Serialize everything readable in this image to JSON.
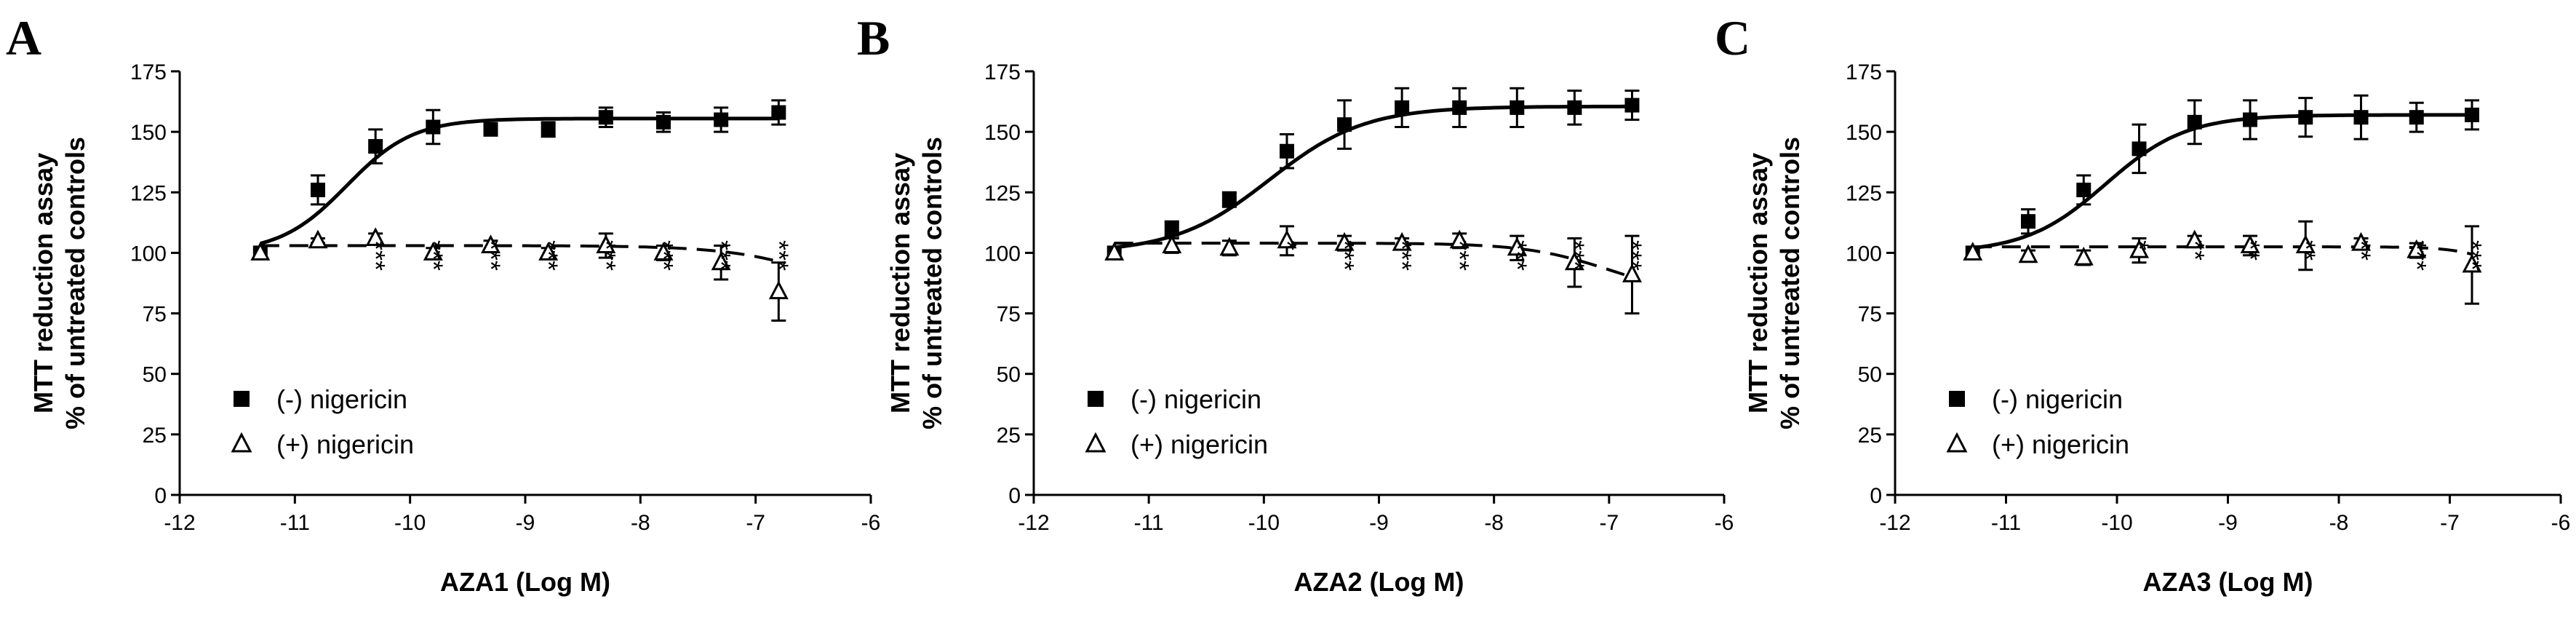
{
  "chart_data": [
    {
      "type": "line",
      "panel": "A",
      "xlabel": "AZA1 (Log M)",
      "ylabel_lines": [
        "MTT reduction assay",
        "% of untreated controls"
      ],
      "xlim": [
        -12,
        -6
      ],
      "ylim": [
        0,
        175
      ],
      "xticks": [
        -12,
        -11,
        -10,
        -9,
        -8,
        -7,
        -6
      ],
      "yticks": [
        0,
        25,
        50,
        75,
        100,
        125,
        150,
        175
      ],
      "xtick_labels": [
        "-12",
        "-11",
        "-10",
        "-9",
        "-8",
        "-7",
        "-6"
      ],
      "ytick_labels": [
        "0",
        "25",
        "50",
        "75",
        "100",
        "125",
        "150",
        "175"
      ],
      "legend": [
        "(-) nigericin",
        "(+) nigericin"
      ],
      "series": [
        {
          "name": "(-) nigericin",
          "marker": "square",
          "line": "solid",
          "x": [
            -11.3,
            -10.8,
            -10.3,
            -9.8,
            -9.3,
            -8.8,
            -8.3,
            -7.8,
            -7.3,
            -6.8
          ],
          "y": [
            100,
            126,
            144,
            152,
            151,
            151,
            156,
            154,
            155,
            158
          ],
          "err": [
            0,
            6,
            7,
            7,
            2,
            3,
            4,
            4,
            5,
            5
          ],
          "fit": {
            "bottom": 100,
            "top": 155.5,
            "logec50": -10.55,
            "hill": 1.5
          }
        },
        {
          "name": "(+) nigericin",
          "marker": "triangle",
          "line": "dashed",
          "x": [
            -11.3,
            -10.8,
            -10.3,
            -9.8,
            -9.3,
            -8.8,
            -8.3,
            -7.8,
            -7.3,
            -6.8
          ],
          "y": [
            100,
            105,
            106,
            100,
            103,
            100,
            103,
            100,
            96,
            84
          ],
          "err": [
            0,
            1,
            2,
            2,
            2,
            2,
            5,
            3,
            7,
            12
          ],
          "fit": {
            "bottom": 103,
            "top": 70,
            "logec50": -6.2,
            "hill": 1
          }
        }
      ],
      "significance": [
        {
          "x": -10.3,
          "label": "***"
        },
        {
          "x": -9.8,
          "label": "***"
        },
        {
          "x": -9.3,
          "label": "***"
        },
        {
          "x": -8.8,
          "label": "***"
        },
        {
          "x": -8.3,
          "label": "***"
        },
        {
          "x": -7.8,
          "label": "***"
        },
        {
          "x": -7.3,
          "label": "***"
        },
        {
          "x": -6.8,
          "label": "***"
        }
      ]
    },
    {
      "type": "line",
      "panel": "B",
      "xlabel": "AZA2 (Log M)",
      "ylabel_lines": [
        "MTT reduction assay",
        "% of untreated controls"
      ],
      "xlim": [
        -12,
        -6
      ],
      "ylim": [
        0,
        175
      ],
      "xticks": [
        -12,
        -11,
        -10,
        -9,
        -8,
        -7,
        -6
      ],
      "yticks": [
        0,
        25,
        50,
        75,
        100,
        125,
        150,
        175
      ],
      "xtick_labels": [
        "-12",
        "-11",
        "-10",
        "-9",
        "-8",
        "-7",
        "-6"
      ],
      "ytick_labels": [
        "0",
        "25",
        "50",
        "75",
        "100",
        "125",
        "150",
        "175"
      ],
      "legend": [
        "(-) nigericin",
        "(+) nigericin"
      ],
      "series": [
        {
          "name": "(-) nigericin",
          "marker": "square",
          "line": "solid",
          "x": [
            -11.3,
            -10.8,
            -10.3,
            -9.8,
            -9.3,
            -8.8,
            -8.3,
            -7.8,
            -7.3,
            -6.8
          ],
          "y": [
            100,
            110,
            122,
            142,
            153,
            160,
            160,
            160,
            160,
            161
          ],
          "err": [
            0,
            3,
            3,
            7,
            10,
            8,
            8,
            8,
            7,
            6
          ],
          "fit": {
            "bottom": 100,
            "top": 160.5,
            "logec50": -9.95,
            "hill": 1.05
          }
        },
        {
          "name": "(+) nigericin",
          "marker": "triangle",
          "line": "dashed",
          "x": [
            -11.3,
            -10.8,
            -10.3,
            -9.8,
            -9.3,
            -8.8,
            -8.3,
            -7.8,
            -7.3,
            -6.8
          ],
          "y": [
            100,
            103,
            102,
            105,
            104,
            104,
            105,
            102,
            96,
            91
          ],
          "err": [
            0,
            3,
            3,
            6,
            3,
            2,
            3,
            5,
            10,
            16
          ],
          "fit": {
            "bottom": 104,
            "top": 82,
            "logec50": -7.0,
            "hill": 1.2
          }
        }
      ],
      "significance": [
        {
          "x": -9.8,
          "label": "*"
        },
        {
          "x": -9.3,
          "label": "***"
        },
        {
          "x": -8.8,
          "label": "***"
        },
        {
          "x": -8.3,
          "label": "***"
        },
        {
          "x": -7.8,
          "label": "***"
        },
        {
          "x": -7.3,
          "label": "***"
        },
        {
          "x": -6.8,
          "label": "***"
        }
      ]
    },
    {
      "type": "line",
      "panel": "C",
      "xlabel": "AZA3 (Log M)",
      "ylabel_lines": [
        "MTT reduction assay",
        "% of untreated controls"
      ],
      "xlim": [
        -12,
        -6
      ],
      "ylim": [
        0,
        175
      ],
      "xticks": [
        -12,
        -11,
        -10,
        -9,
        -8,
        -7,
        -6
      ],
      "yticks": [
        0,
        25,
        50,
        75,
        100,
        125,
        150,
        175
      ],
      "xtick_labels": [
        "-12",
        "-11",
        "-10",
        "-9",
        "-8",
        "-7",
        "-6"
      ],
      "ytick_labels": [
        "0",
        "25",
        "50",
        "75",
        "100",
        "125",
        "150",
        "175"
      ],
      "legend": [
        "(-) nigericin",
        "(+) nigericin"
      ],
      "series": [
        {
          "name": "(-) nigericin",
          "marker": "square",
          "line": "solid",
          "x": [
            -11.3,
            -10.8,
            -10.3,
            -9.8,
            -9.3,
            -8.8,
            -8.3,
            -7.8,
            -7.3,
            -6.8
          ],
          "y": [
            100,
            113,
            126,
            143,
            154,
            155,
            156,
            156,
            156,
            157
          ],
          "err": [
            0,
            5,
            6,
            10,
            9,
            8,
            8,
            9,
            6,
            6
          ],
          "fit": {
            "bottom": 100,
            "top": 157,
            "logec50": -10.1,
            "hill": 1.2
          }
        },
        {
          "name": "(+) nigericin",
          "marker": "triangle",
          "line": "dashed",
          "x": [
            -11.3,
            -10.8,
            -10.3,
            -9.8,
            -9.3,
            -8.8,
            -8.3,
            -7.8,
            -7.3,
            -6.8
          ],
          "y": [
            100,
            99,
            98,
            101,
            105,
            103,
            103,
            104,
            101,
            95
          ],
          "err": [
            0,
            2,
            3,
            5,
            2,
            4,
            10,
            2,
            3,
            16
          ],
          "fit": {
            "bottom": 102.5,
            "top": 80,
            "logec50": -6.4,
            "hill": 2
          }
        }
      ],
      "significance": [
        {
          "x": -9.8,
          "label": "*"
        },
        {
          "x": -9.3,
          "label": "**"
        },
        {
          "x": -8.8,
          "label": "**"
        },
        {
          "x": -8.3,
          "label": "**"
        },
        {
          "x": -7.8,
          "label": "**"
        },
        {
          "x": -7.3,
          "label": "***"
        },
        {
          "x": -6.8,
          "label": "***"
        }
      ]
    }
  ]
}
